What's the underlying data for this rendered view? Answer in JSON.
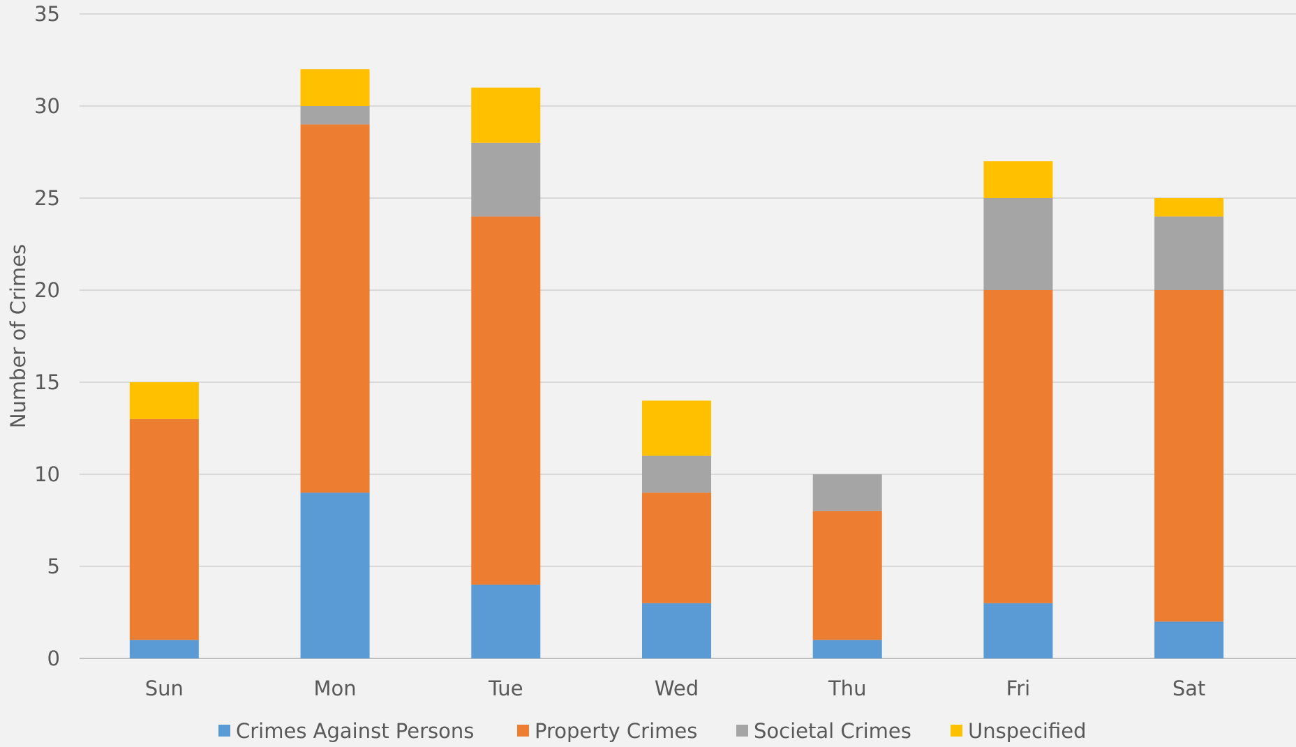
{
  "chart_data": {
    "type": "bar",
    "stacked": true,
    "title": "",
    "xlabel": "",
    "ylabel": "Number of Crimes",
    "ylim": [
      0,
      35
    ],
    "yticks": [
      0,
      5,
      10,
      15,
      20,
      25,
      30,
      35
    ],
    "grid": true,
    "legend_position": "bottom",
    "categories": [
      "Sun",
      "Mon",
      "Tue",
      "Wed",
      "Thu",
      "Fri",
      "Sat"
    ],
    "series": [
      {
        "name": "Crimes Against Persons",
        "color": "#5b9bd5",
        "values": [
          1,
          9,
          4,
          3,
          1,
          3,
          2
        ]
      },
      {
        "name": "Property Crimes",
        "color": "#ed7d31",
        "values": [
          12,
          20,
          20,
          6,
          7,
          17,
          18
        ]
      },
      {
        "name": "Societal Crimes",
        "color": "#a5a5a5",
        "values": [
          0,
          1,
          4,
          2,
          2,
          5,
          4
        ]
      },
      {
        "name": "Unspecified",
        "color": "#ffc000",
        "values": [
          2,
          2,
          3,
          3,
          0,
          2,
          1
        ]
      }
    ]
  }
}
